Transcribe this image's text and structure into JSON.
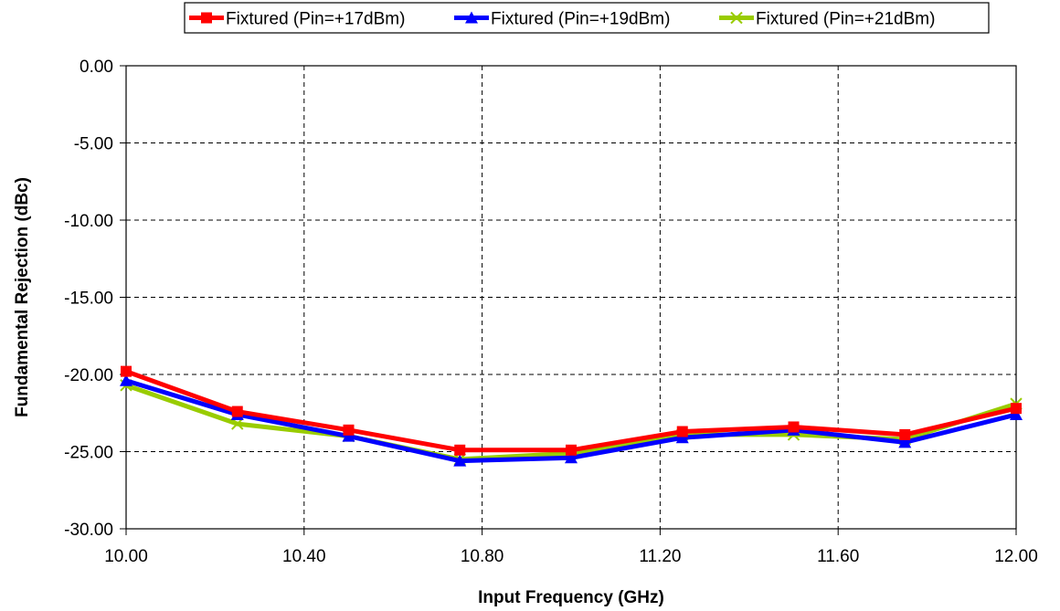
{
  "chart_data": {
    "type": "line",
    "xlabel": "Input Frequency (GHz)",
    "ylabel": "Fundamental Rejection (dBc)",
    "xlim": [
      10.0,
      12.0
    ],
    "ylim": [
      -30.0,
      0.0
    ],
    "x_ticks": [
      "10.00",
      "10.40",
      "10.80",
      "11.20",
      "11.60",
      "12.00"
    ],
    "y_ticks": [
      "0.00",
      "-5.00",
      "-10.00",
      "-15.00",
      "-20.00",
      "-25.00",
      "-30.00"
    ],
    "x_tick_values": [
      10.0,
      10.4,
      10.8,
      11.2,
      11.6,
      12.0
    ],
    "y_tick_values": [
      0,
      -5,
      -10,
      -15,
      -20,
      -25,
      -30
    ],
    "grid": true,
    "legend_position": "top",
    "x": [
      10.0,
      10.25,
      10.5,
      10.75,
      11.0,
      11.25,
      11.5,
      11.75,
      12.0
    ],
    "series": [
      {
        "name": "Fixtured (Pin=+17dBm)",
        "color": "#ff0000",
        "marker": "square",
        "values": [
          -19.8,
          -22.4,
          -23.6,
          -24.9,
          -24.9,
          -23.7,
          -23.4,
          -23.9,
          -22.2
        ]
      },
      {
        "name": "Fixtured (Pin=+19dBm)",
        "color": "#0000ff",
        "marker": "triangle",
        "values": [
          -20.4,
          -22.6,
          -24.0,
          -25.6,
          -25.4,
          -24.1,
          -23.6,
          -24.4,
          -22.6
        ]
      },
      {
        "name": "Fixtured (Pin=+21dBm)",
        "color": "#99cc00",
        "marker": "x",
        "values": [
          -20.7,
          -23.2,
          -24.0,
          -25.5,
          -25.1,
          -23.9,
          -23.9,
          -24.2,
          -21.9
        ]
      }
    ]
  }
}
